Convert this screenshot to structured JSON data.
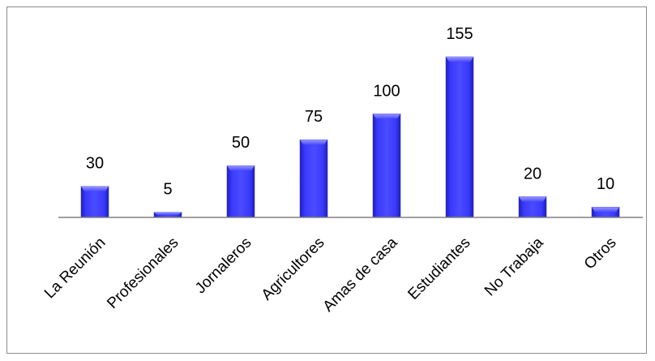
{
  "chart_data": {
    "type": "bar",
    "title": "",
    "xlabel": "",
    "ylabel": "",
    "categories": [
      "La Reunión",
      "Profesionales",
      "Jornaleros",
      "Agricultores",
      "Amas de casa",
      "Estudiantes",
      "No Trabaja",
      "Otros"
    ],
    "values": [
      30,
      5,
      50,
      75,
      100,
      155,
      20,
      10
    ],
    "data_labels": [
      "30",
      "5",
      "50",
      "75",
      "100",
      "155",
      "20",
      "10"
    ],
    "ylim": [
      0,
      160
    ],
    "grid": false,
    "legend": "none",
    "colors": {
      "bar_fill": "#3333ff",
      "bar_light": "#7b7bff",
      "bar_dark": "#1f1fb8",
      "axis": "#808080"
    }
  }
}
